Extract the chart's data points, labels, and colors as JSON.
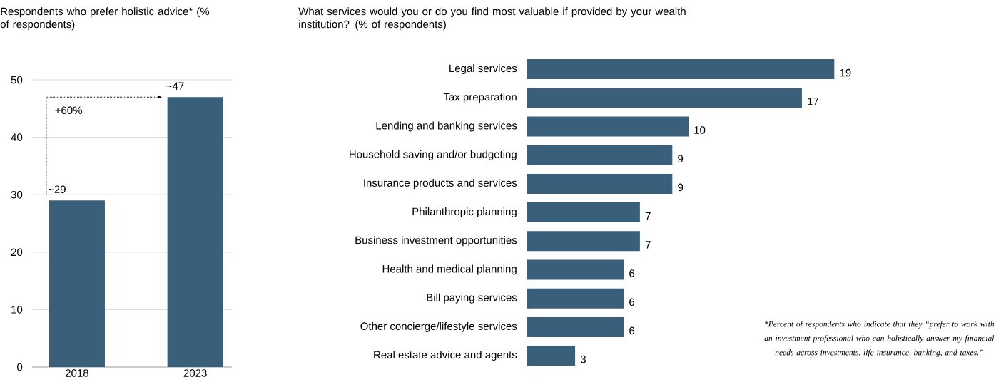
{
  "chart_data": [
    {
      "type": "bar",
      "title": "Respondents who prefer holistic advice* (% of respondents)",
      "categories": [
        "2018",
        "2023"
      ],
      "values": [
        29,
        47
      ],
      "value_labels": [
        "~29",
        "~47"
      ],
      "color": "#3a5f7a",
      "ylim": [
        0,
        50
      ],
      "yticks": [
        0,
        10,
        20,
        30,
        40,
        50
      ],
      "grid": "y",
      "annotations": [
        "+60%"
      ]
    },
    {
      "type": "bar",
      "orientation": "horizontal",
      "title": "What services would you or do you find most valuable if provided by your wealth institution? (% of respondents)",
      "categories": [
        "Legal services",
        "Tax preparation",
        "Lending and banking services",
        "Household saving and/or budgeting",
        "Insurance products and services",
        "Philanthropic planning",
        "Business investment opportunities",
        "Health and medical planning",
        "Bill paying services",
        "Other concierge/lifestyle services",
        "Real estate advice and agents"
      ],
      "values": [
        19,
        17,
        10,
        9,
        9,
        7,
        7,
        6,
        6,
        6,
        3
      ],
      "color": "#3a5f7a",
      "data_labels": true,
      "annotations": [
        "*Percent of respondents who indicate that they “prefer to work with an investment professional who can holistically answer my financial needs across investments, life insurance, banking, and taxes.”"
      ]
    }
  ]
}
